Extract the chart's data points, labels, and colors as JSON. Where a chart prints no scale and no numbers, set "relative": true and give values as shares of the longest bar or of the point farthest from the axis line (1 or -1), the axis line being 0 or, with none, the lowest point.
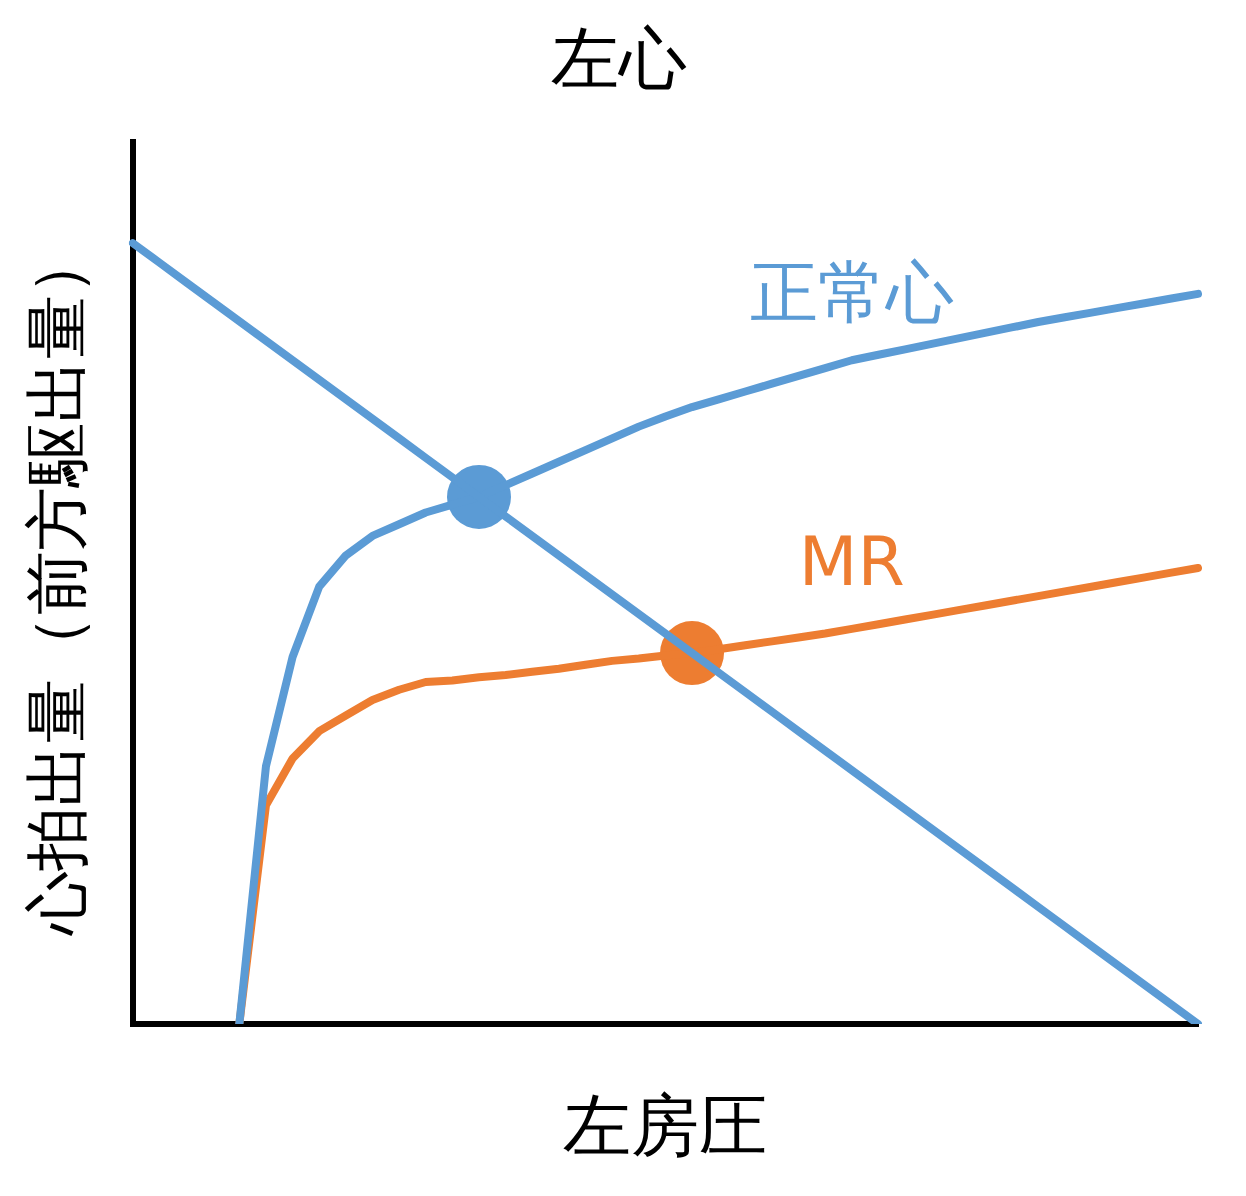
{
  "chart_data": {
    "type": "line",
    "title": "左心",
    "xlabel": "左房圧",
    "ylabel": "心拍出量（前方駆出量）",
    "relative": true,
    "legend": false,
    "marker": "none",
    "line_style": "solid",
    "categories": [
      null,
      null,
      null,
      null,
      null,
      null,
      null,
      null,
      null,
      null,
      null,
      null,
      null,
      null,
      null,
      null,
      null,
      null,
      null,
      null,
      null,
      null,
      null,
      null,
      null,
      null,
      null,
      null,
      null,
      null,
      null,
      null,
      null,
      null,
      null,
      null,
      null,
      null,
      null,
      null,
      null
    ],
    "series": [
      {
        "color": "#5b9bd5",
        "values": [
          1,
          0.975,
          0.95,
          0.925,
          0.9,
          0.875,
          0.85,
          0.825,
          0.8,
          0.775,
          0.75,
          0.725,
          0.7,
          0.675,
          0.65,
          0.625,
          0.6,
          0.575,
          0.55,
          0.525,
          0.5,
          0.475,
          0.45,
          0.425,
          0.4,
          0.375,
          0.35,
          0.325,
          0.3,
          0.275,
          0.25,
          0.225,
          0.2,
          0.175,
          0.15,
          0.125,
          0.1,
          0.075,
          0.05,
          0.025,
          0
        ]
      },
      {
        "name": "正常心",
        "color": "#5b9bd5",
        "values": [
          null,
          null,
          null,
          null,
          0,
          0.33,
          0.47,
          0.56,
          0.6,
          0.625,
          0.64,
          0.655,
          0.665,
          0.675,
          0.69,
          0.705,
          0.72,
          0.735,
          0.75,
          0.765,
          0.778,
          0.79,
          0.8,
          0.81,
          0.82,
          0.83,
          0.84,
          0.85,
          0.857,
          0.864,
          0.871,
          0.878,
          0.885,
          0.892,
          0.899,
          0.905,
          0.911,
          0.917,
          0.923,
          0.929,
          0.935
        ]
      },
      {
        "name": "MR",
        "color": "#ed7d31",
        "values": [
          null,
          null,
          null,
          null,
          0,
          0.28,
          0.34,
          0.375,
          0.395,
          0.415,
          0.428,
          0.438,
          0.44,
          0.444,
          0.447,
          0.451,
          0.455,
          0.46,
          0.465,
          0.468,
          0.472,
          0.475,
          0.48,
          0.485,
          0.49,
          0.495,
          0.5,
          0.506,
          0.512,
          0.518,
          0.524,
          0.53,
          0.536,
          0.542,
          0.548,
          0.554,
          0.56,
          0.566,
          0.572,
          0.578,
          0.584
        ]
      },
      {
        "type": "line",
        "marker": "circle",
        "color": "#5b9bd5",
        "values": [
          null,
          null,
          null,
          null,
          null,
          null,
          null,
          null,
          null,
          null,
          null,
          null,
          null,
          0.675,
          null,
          null,
          null,
          null,
          null,
          null,
          null,
          null,
          null,
          null,
          null,
          null,
          null,
          null,
          null,
          null,
          null,
          null,
          null,
          null,
          null,
          null,
          null,
          null,
          null,
          null,
          null
        ]
      },
      {
        "type": "line",
        "marker": "circle",
        "color": "#ed7d31",
        "values": [
          null,
          null,
          null,
          null,
          null,
          null,
          null,
          null,
          null,
          null,
          null,
          null,
          null,
          null,
          null,
          null,
          null,
          null,
          null,
          null,
          null,
          0.475,
          null,
          null,
          null,
          null,
          null,
          null,
          null,
          null,
          null,
          null,
          null,
          null,
          null,
          null,
          null,
          null,
          null,
          null,
          null
        ]
      }
    ]
  }
}
